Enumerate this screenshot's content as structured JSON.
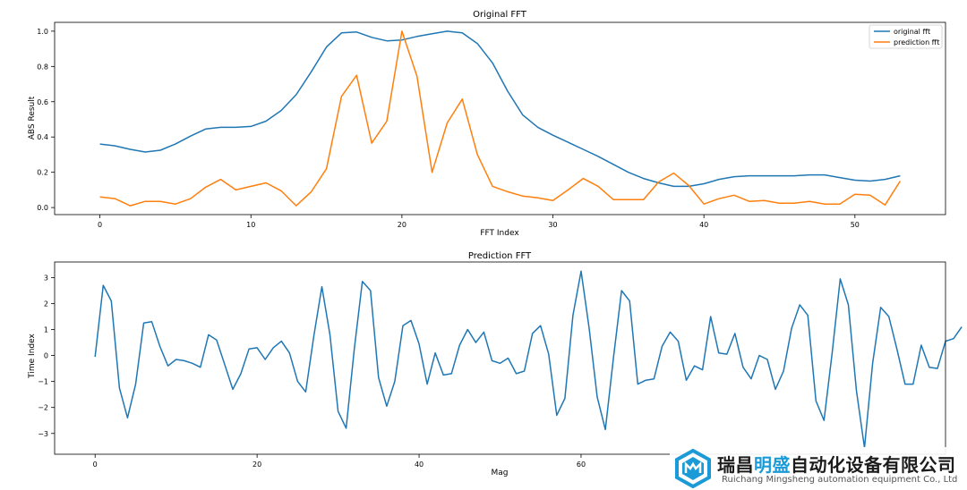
{
  "chart_data": [
    {
      "type": "line",
      "title": "Original FFT",
      "xlabel": "FFT Index",
      "ylabel": "ABS Result",
      "xlim": [
        -3,
        56
      ],
      "ylim": [
        -0.04,
        1.05
      ],
      "xticks": [
        0,
        10,
        20,
        30,
        40,
        50
      ],
      "yticks": [
        0.0,
        0.2,
        0.4,
        0.6,
        0.8,
        1.0
      ],
      "ytick_labels": [
        "0.0",
        "0.2",
        "0.4",
        "0.6",
        "0.8",
        "1.0"
      ],
      "legend_placement": "top-right",
      "grid": false,
      "series": [
        {
          "name": "original fft",
          "color": "#1f77b4",
          "values": [
            0.36,
            0.35,
            0.33,
            0.315,
            0.325,
            0.36,
            0.405,
            0.445,
            0.455,
            0.455,
            0.46,
            0.49,
            0.55,
            0.64,
            0.77,
            0.91,
            0.99,
            0.995,
            0.965,
            0.945,
            0.95,
            0.97,
            0.985,
            1.0,
            0.99,
            0.93,
            0.82,
            0.66,
            0.525,
            0.455,
            0.41,
            0.37,
            0.33,
            0.29,
            0.245,
            0.2,
            0.165,
            0.14,
            0.12,
            0.12,
            0.135,
            0.16,
            0.175,
            0.18,
            0.18,
            0.18,
            0.18,
            0.185,
            0.185,
            0.17,
            0.155,
            0.15,
            0.16,
            0.18
          ]
        },
        {
          "name": "prediction fft",
          "color": "#ff7f0e",
          "values": [
            0.06,
            0.05,
            0.01,
            0.035,
            0.035,
            0.02,
            0.05,
            0.115,
            0.16,
            0.1,
            0.12,
            0.14,
            0.095,
            0.01,
            0.09,
            0.22,
            0.63,
            0.75,
            0.365,
            0.49,
            1.0,
            0.745,
            0.2,
            0.48,
            0.615,
            0.3,
            0.12,
            0.09,
            0.065,
            0.055,
            0.04,
            0.1,
            0.165,
            0.12,
            0.045,
            0.045,
            0.045,
            0.145,
            0.195,
            0.125,
            0.02,
            0.05,
            0.07,
            0.035,
            0.04,
            0.025,
            0.025,
            0.035,
            0.02,
            0.02,
            0.075,
            0.07,
            0.015,
            0.15
          ]
        }
      ]
    },
    {
      "type": "line",
      "title": "Prediction FFT",
      "xlabel": "Mag",
      "ylabel": "Time Index",
      "xlim": [
        -5,
        105
      ],
      "ylim": [
        -3.8,
        3.6
      ],
      "xticks": [
        0,
        20,
        40,
        60
      ],
      "yticks": [
        -3,
        -2,
        -1,
        0,
        1,
        2,
        3
      ],
      "ytick_labels": [
        "−3",
        "−2",
        "−1",
        "0",
        "1",
        "2",
        "3"
      ],
      "grid": false,
      "series": [
        {
          "color": "#1f77b4",
          "values": [
            -0.05,
            2.7,
            2.1,
            -1.25,
            -2.4,
            -1.1,
            1.25,
            1.3,
            0.35,
            -0.4,
            -0.15,
            -0.2,
            -0.3,
            -0.45,
            0.8,
            0.6,
            -0.35,
            -1.3,
            -0.7,
            0.25,
            0.3,
            -0.15,
            0.3,
            0.55,
            0.1,
            -1.0,
            -1.4,
            0.75,
            2.65,
            0.8,
            -2.15,
            -2.8,
            0.25,
            2.85,
            2.5,
            -0.85,
            -1.95,
            -1.0,
            1.15,
            1.35,
            0.45,
            -1.1,
            0.1,
            -0.75,
            -0.7,
            0.4,
            1.0,
            0.5,
            0.9,
            -0.2,
            -0.3,
            -0.1,
            -0.7,
            -0.6,
            0.85,
            1.15,
            0.05,
            -2.3,
            -1.65,
            1.55,
            3.25,
            1.05,
            -1.6,
            -2.85,
            -0.1,
            2.5,
            2.1,
            -1.1,
            -0.95,
            -0.9,
            0.35,
            0.9,
            0.55,
            -0.95,
            -0.4,
            -0.55,
            1.5,
            0.1,
            0.05,
            0.85,
            -0.45,
            -0.9,
            0.0,
            -0.15,
            -1.3,
            -0.6,
            1.05,
            1.95,
            1.55,
            -1.75,
            -2.5,
            0.1,
            2.95,
            1.95,
            -1.35,
            -3.55,
            -0.3,
            1.85,
            1.5,
            0.25,
            -1.1,
            -1.1,
            0.4,
            -0.45,
            -0.5,
            0.55,
            0.65,
            1.1
          ]
        }
      ]
    }
  ],
  "watermark": {
    "title_part1": "瑞昌",
    "title_part2": "明盛",
    "title_part3": "自动化设备有限公司",
    "subtitle": "Ruichang Mingsheng automation equipment Co., Ltd",
    "brand_color": "#1a9bd7",
    "icon": "hexagon-logo-icon"
  }
}
